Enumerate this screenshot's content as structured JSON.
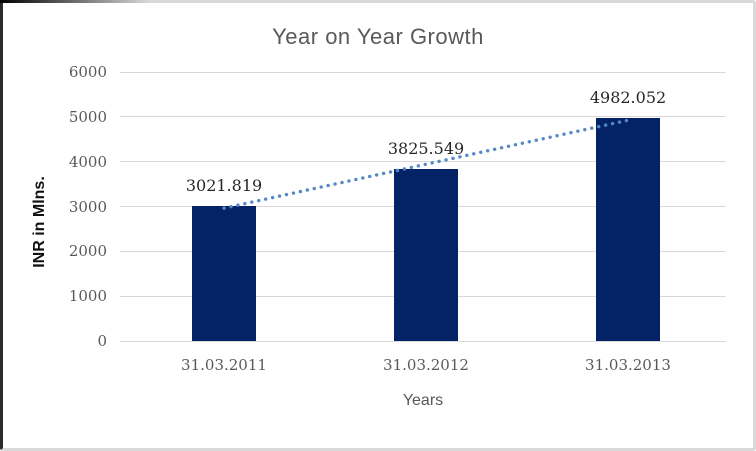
{
  "chart_data": {
    "type": "bar",
    "title": "Year on Year Growth",
    "xlabel": "Years",
    "ylabel": "INR in Mlns.",
    "categories": [
      "31.03.2011",
      "31.03.2012",
      "31.03.2013"
    ],
    "series": [
      {
        "name": "INR in Mlns.",
        "values": [
          3021.819,
          3825.549,
          4982.052
        ]
      }
    ],
    "data_labels": [
      "3021.819",
      "3825.549",
      "4982.052"
    ],
    "yticks": [
      0,
      1000,
      2000,
      3000,
      4000,
      5000,
      6000
    ],
    "ylim": [
      0,
      6000
    ],
    "grid": true,
    "legend": false,
    "trendline": {
      "type": "linear",
      "style": "dotted",
      "color": "#5488C7"
    },
    "colors": {
      "bar": "#042266",
      "gridline": "#d9d9d9",
      "tick_text": "#595959",
      "data_label_text": "#262626",
      "title_text": "#595959"
    }
  }
}
